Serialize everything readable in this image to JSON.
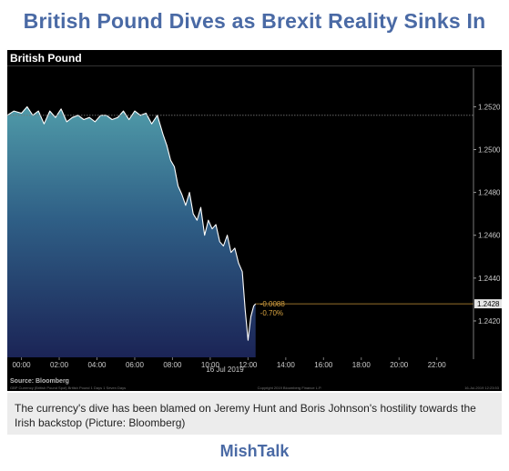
{
  "headline": "British Pound Dives as Brexit Reality Sinks In",
  "caption": "The currency's dive has been blamed on Jeremy Hunt and Boris Johnson's hostility towards the Irish backstop (Picture: Bloomberg)",
  "brand": "MishTalk",
  "chart_data": {
    "type": "area",
    "title": "British Pound",
    "date_label": "16 Jul 2019",
    "source": "Source: Bloomberg",
    "footer_left": "GBP Currency (British Pound Spot) British Pound 1 Days 1 Seven Days",
    "footer_center": "Copyright 2019 Bloomberg Finance L.P.",
    "footer_right": "16-Jul-2019 12:23:53",
    "x_ticks": [
      "00:00",
      "02:00",
      "04:00",
      "06:00",
      "08:00",
      "10:00",
      "12:00",
      "14:00",
      "16:00",
      "18:00",
      "20:00",
      "22:00"
    ],
    "y_ticks": [
      "1.2520",
      "1.2500",
      "1.2480",
      "1.2460",
      "1.2440",
      "1.2420"
    ],
    "y_tick_values": [
      1.252,
      1.25,
      1.248,
      1.246,
      1.244,
      1.242
    ],
    "ylim": [
      1.2403,
      1.2538
    ],
    "x_range_hours": [
      -0.75,
      23.75
    ],
    "reference_level": 1.2516,
    "last_value": 1.2428,
    "last_value_label": "1.2428",
    "change_abs": "-0.0088",
    "change_pct": "-0.70%",
    "series": [
      {
        "x": [
          -0.75,
          -0.4,
          0,
          0.3,
          0.6,
          0.9,
          1.2,
          1.5,
          1.8,
          2.1,
          2.4,
          2.7,
          3.0,
          3.3,
          3.6,
          3.9,
          4.2,
          4.5,
          4.8,
          5.1,
          5.4,
          5.7,
          6.0,
          6.3,
          6.6,
          6.9,
          7.2,
          7.5,
          7.7,
          7.9,
          8.1,
          8.3,
          8.5,
          8.7,
          8.9,
          9.1,
          9.3,
          9.5,
          9.7,
          9.9,
          10.1,
          10.3,
          10.5,
          10.7,
          10.9,
          11.1,
          11.3,
          11.5,
          11.7,
          11.85,
          12.0,
          12.15,
          12.3,
          12.4
        ],
        "y": [
          1.2516,
          1.2518,
          1.2517,
          1.252,
          1.2516,
          1.2518,
          1.2512,
          1.2518,
          1.2515,
          1.2519,
          1.2513,
          1.2515,
          1.2516,
          1.2514,
          1.2515,
          1.2513,
          1.2516,
          1.2516,
          1.2514,
          1.2515,
          1.2518,
          1.2514,
          1.2518,
          1.2516,
          1.2517,
          1.2512,
          1.2516,
          1.2507,
          1.2502,
          1.2495,
          1.2492,
          1.2483,
          1.2479,
          1.2474,
          1.248,
          1.247,
          1.2467,
          1.2473,
          1.246,
          1.2467,
          1.2463,
          1.2465,
          1.2457,
          1.2455,
          1.246,
          1.2452,
          1.2454,
          1.2447,
          1.2443,
          1.2425,
          1.2411,
          1.2422,
          1.2427,
          1.2428
        ]
      }
    ]
  }
}
